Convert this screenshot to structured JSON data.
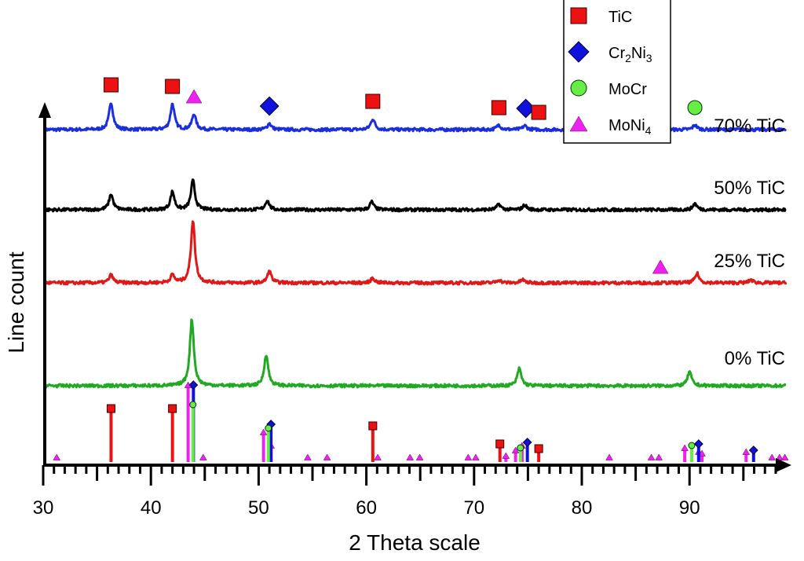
{
  "chart_data": {
    "type": "line",
    "title": "",
    "xlabel": "2 Theta scale",
    "ylabel": "Line count",
    "xlim": [
      30,
      99
    ],
    "xticks": [
      30,
      40,
      50,
      60,
      70,
      80,
      90
    ],
    "minor_tick_step": 1,
    "grid": false,
    "yticks": false,
    "legend": {
      "placement": "top-right",
      "entries": [
        {
          "phase": "TiC",
          "label": "TiC",
          "marker": "square",
          "color": "#ee1111"
        },
        {
          "phase": "Cr2Ni3",
          "label": "Cr",
          "sub1": "2",
          "label2": "Ni",
          "sub2": "3",
          "marker": "diamond",
          "color": "#1111dd"
        },
        {
          "phase": "MoCr",
          "label": "MoCr",
          "marker": "circle",
          "color": "#66ee44"
        },
        {
          "phase": "MoNi4",
          "label": "MoNi",
          "sub1": "4",
          "marker": "triangle",
          "color": "#ee22ee"
        }
      ]
    },
    "series": [
      {
        "name": "70% TiC",
        "color": "#1a2ee0",
        "peaks": [
          [
            36.3,
            35
          ],
          [
            42.0,
            33
          ],
          [
            44.0,
            20
          ],
          [
            51.0,
            8
          ],
          [
            60.6,
            14
          ],
          [
            72.3,
            6
          ],
          [
            74.7,
            5
          ],
          [
            90.5,
            6
          ]
        ],
        "markers": [
          {
            "x": 36.3,
            "phase": "TiC"
          },
          {
            "x": 42.0,
            "phase": "TiC"
          },
          {
            "x": 44.0,
            "phase": "MoNi4"
          },
          {
            "x": 51.0,
            "phase": "Cr2Ni3"
          },
          {
            "x": 60.6,
            "phase": "TiC"
          },
          {
            "x": 72.3,
            "phase": "TiC"
          },
          {
            "x": 74.8,
            "phase": "Cr2Ni3"
          },
          {
            "x": 76.0,
            "phase": "TiC"
          },
          {
            "x": 90.5,
            "phase": "MoCr"
          }
        ]
      },
      {
        "name": "50% TiC",
        "color": "#000000",
        "peaks": [
          [
            36.3,
            20
          ],
          [
            42.0,
            23
          ],
          [
            43.9,
            37
          ],
          [
            50.8,
            12
          ],
          [
            60.5,
            10
          ],
          [
            72.3,
            7
          ],
          [
            74.7,
            6
          ],
          [
            90.5,
            8
          ]
        ],
        "markers": []
      },
      {
        "name": "25% TiC",
        "color": "#e01818",
        "peaks": [
          [
            36.3,
            10
          ],
          [
            42.0,
            10
          ],
          [
            43.9,
            80
          ],
          [
            51.0,
            15
          ],
          [
            60.6,
            6
          ],
          [
            72.3,
            4
          ],
          [
            74.5,
            4
          ],
          [
            90.7,
            12
          ],
          [
            95.7,
            4
          ]
        ],
        "markers": [
          {
            "x": 87.3,
            "phase": "MoNi4"
          }
        ]
      },
      {
        "name": "0% TiC",
        "color": "#22a822",
        "peaks": [
          [
            43.8,
            85
          ],
          [
            50.7,
            40
          ],
          [
            74.2,
            22
          ],
          [
            90.0,
            18
          ]
        ],
        "markers": []
      }
    ],
    "reference_lines": [
      {
        "phase": "TiC",
        "lines": [
          [
            36.3,
            65
          ],
          [
            42.0,
            65
          ],
          [
            60.6,
            43
          ],
          [
            72.4,
            20
          ],
          [
            76.0,
            14
          ]
        ]
      },
      {
        "phase": "Cr2Ni3",
        "lines": [
          [
            43.8,
            95
          ],
          [
            51.0,
            45
          ],
          [
            74.8,
            22
          ],
          [
            90.7,
            20
          ],
          [
            95.8,
            12
          ]
        ]
      },
      {
        "phase": "MoCr",
        "lines": [
          [
            43.9,
            70
          ],
          [
            50.9,
            40
          ],
          [
            74.3,
            15
          ],
          [
            90.2,
            18
          ]
        ]
      },
      {
        "phase": "MoNi4",
        "lines": [
          [
            31.4,
            3
          ],
          [
            43.6,
            95
          ],
          [
            45.0,
            3
          ],
          [
            50.6,
            35
          ],
          [
            51.3,
            18
          ],
          [
            54.7,
            3
          ],
          [
            56.5,
            3
          ],
          [
            61.2,
            3
          ],
          [
            64.2,
            3
          ],
          [
            65.1,
            3
          ],
          [
            69.6,
            3
          ],
          [
            70.3,
            3
          ],
          [
            73.1,
            5
          ],
          [
            74.0,
            12
          ],
          [
            74.6,
            18
          ],
          [
            82.7,
            3
          ],
          [
            86.6,
            3
          ],
          [
            87.3,
            3
          ],
          [
            89.7,
            15
          ],
          [
            91.0,
            10
          ],
          [
            91.3,
            8
          ],
          [
            95.4,
            10
          ],
          [
            97.8,
            3
          ],
          [
            98.5,
            3
          ],
          [
            99.0,
            3
          ]
        ]
      }
    ]
  }
}
